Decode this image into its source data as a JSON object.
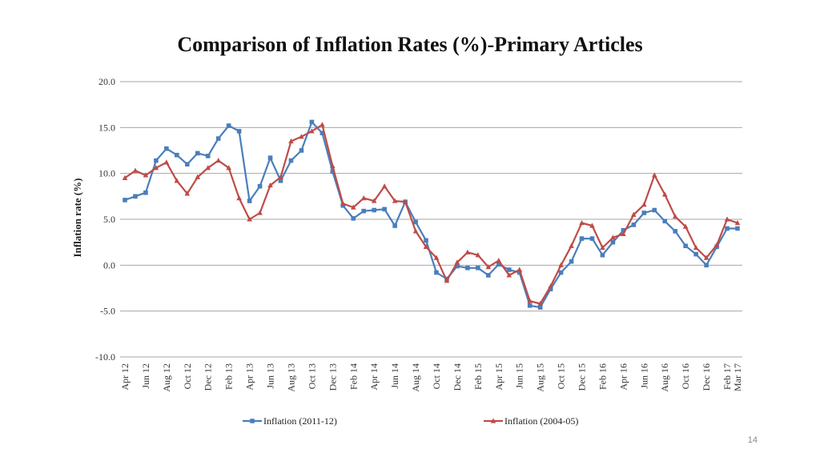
{
  "page_number": "14",
  "chart_data": {
    "type": "line",
    "title": "Comparison of Inflation Rates (%)-Primary Articles",
    "xlabel": "",
    "ylabel": "Inflation rate (%)",
    "ylim": [
      -10,
      20
    ],
    "yticks": [
      -10,
      -5,
      0,
      5,
      10,
      15,
      20
    ],
    "ytick_labels": [
      "-10.0",
      "-5.0",
      "0.0",
      "5.0",
      "10.0",
      "15.0",
      "20.0"
    ],
    "grid": true,
    "legend_position": "bottom",
    "categories": [
      "Apr 12",
      "May 12",
      "Jun 12",
      "Jul 12",
      "Aug 12",
      "Sep 12",
      "Oct 12",
      "Nov 12",
      "Dec 12",
      "Jan 13",
      "Feb 13",
      "Mar 13",
      "Apr 13",
      "May 13",
      "Jun 13",
      "Jul 13",
      "Aug 13",
      "Sep 13",
      "Oct 13",
      "Nov 13",
      "Dec 13",
      "Jan 14",
      "Feb 14",
      "Mar 14",
      "Apr 14",
      "May 14",
      "Jun 14",
      "Jul 14",
      "Aug 14",
      "Sep 14",
      "Oct 14",
      "Nov 14",
      "Dec 14",
      "Jan 15",
      "Feb 15",
      "Mar 15",
      "Apr 15",
      "May 15",
      "Jun 15",
      "Jul 15",
      "Aug 15",
      "Sep 15",
      "Oct 15",
      "Nov 15",
      "Dec 15",
      "Jan 16",
      "Feb 16",
      "Mar 16",
      "Apr 16",
      "May 16",
      "Jun 16",
      "Jul 16",
      "Aug 16",
      "Sep 16",
      "Oct 16",
      "Nov 16",
      "Dec 16",
      "Jan 17",
      "Feb 17",
      "Mar 17"
    ],
    "tick_labels": [
      "Apr 12",
      "Jun 12",
      "Aug 12",
      "Oct 12",
      "Dec 12",
      "Feb 13",
      "Apr 13",
      "Jun 13",
      "Aug 13",
      "Oct 13",
      "Dec 13",
      "Feb 14",
      "Apr 14",
      "Jun 14",
      "Aug 14",
      "Oct 14",
      "Dec 14",
      "Feb 15",
      "Apr 15",
      "Jun 15",
      "Aug 15",
      "Oct 15",
      "Dec 15",
      "Feb 16",
      "Apr 16",
      "Jun 16",
      "Aug 16",
      "Oct 16",
      "Dec 16",
      "Feb 17",
      "Mar 17"
    ],
    "series": [
      {
        "name": "Inflation (2011-12)",
        "color": "#4A7EBB",
        "marker": "square",
        "values": [
          7.1,
          7.5,
          7.9,
          11.4,
          12.7,
          12.0,
          11.0,
          12.2,
          11.9,
          13.8,
          15.2,
          14.6,
          7.0,
          8.6,
          11.7,
          9.2,
          11.4,
          12.5,
          15.6,
          14.4,
          10.2,
          6.5,
          5.1,
          5.9,
          6.0,
          6.1,
          4.3,
          6.9,
          4.7,
          2.7,
          -0.8,
          -1.5,
          -0.1,
          -0.3,
          -0.3,
          -1.1,
          0.1,
          -0.5,
          -0.8,
          -4.4,
          -4.6,
          -2.6,
          -0.8,
          0.4,
          2.9,
          2.9,
          1.1,
          2.5,
          3.8,
          4.4,
          5.7,
          6.0,
          4.8,
          3.7,
          2.1,
          1.2,
          0.0,
          2.0,
          4.0,
          4.0
        ]
      },
      {
        "name": "Inflation (2004-05)",
        "color": "#BE4B48",
        "marker": "triangle",
        "values": [
          9.5,
          10.3,
          9.8,
          10.6,
          11.2,
          9.2,
          7.8,
          9.6,
          10.6,
          11.4,
          10.6,
          7.3,
          5.0,
          5.7,
          8.7,
          9.6,
          13.5,
          14.0,
          14.6,
          15.3,
          10.8,
          6.7,
          6.3,
          7.3,
          7.0,
          8.6,
          7.0,
          6.9,
          3.7,
          2.0,
          0.8,
          -1.7,
          0.3,
          1.4,
          1.1,
          -0.2,
          0.5,
          -1.1,
          -0.5,
          -3.9,
          -4.2,
          -2.3,
          0.0,
          2.1,
          4.6,
          4.3,
          1.9,
          3.0,
          3.4,
          5.5,
          6.6,
          9.8,
          7.7,
          5.3,
          4.2,
          1.9,
          0.8,
          2.2,
          5.0,
          4.6
        ]
      }
    ]
  }
}
